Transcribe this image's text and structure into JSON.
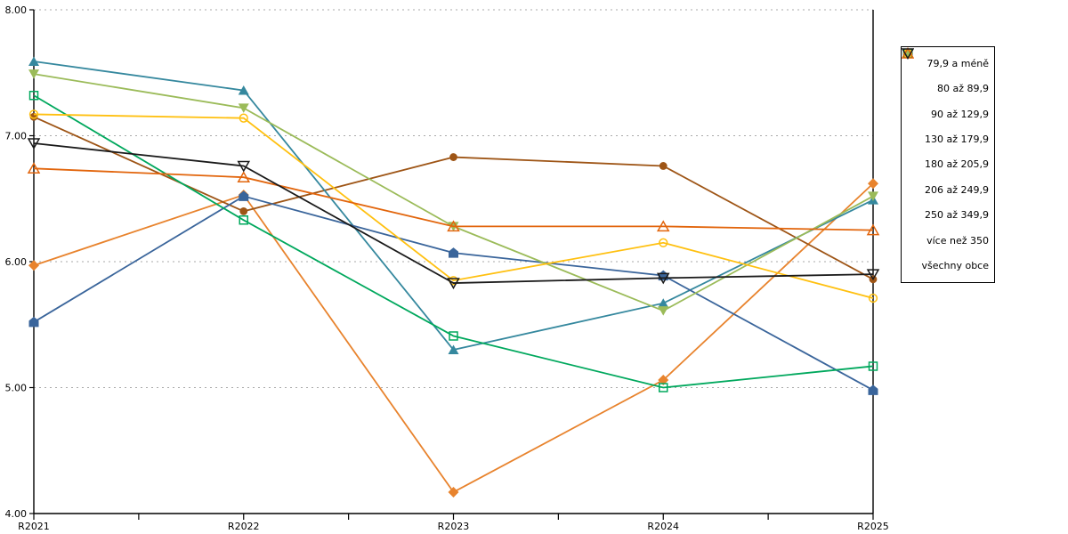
{
  "chart_data": {
    "type": "line",
    "title": "",
    "xlabel": "",
    "ylabel": "",
    "categories": [
      "R2021",
      "R2022",
      "R2023",
      "R2024",
      "R2025"
    ],
    "series": [
      {
        "name": "79,9 a méně",
        "marker": "diamond",
        "fill": "filled",
        "color": "#E8832D",
        "values": [
          5.97,
          6.53,
          4.17,
          5.06,
          6.62
        ]
      },
      {
        "name": "80 až 89,9",
        "marker": "circle",
        "fill": "filled",
        "color": "#9E5516",
        "values": [
          7.15,
          6.4,
          6.83,
          6.76,
          5.86
        ]
      },
      {
        "name": "90 až 129,9",
        "marker": "triangle-up",
        "fill": "filled",
        "color": "#35889E",
        "values": [
          7.59,
          7.36,
          5.3,
          5.67,
          6.49
        ]
      },
      {
        "name": "130 až 179,9",
        "marker": "pentagon",
        "fill": "filled",
        "color": "#3A659B",
        "values": [
          5.52,
          6.52,
          6.07,
          5.89,
          4.98
        ]
      },
      {
        "name": "180 až 205,9",
        "marker": "triangle-down",
        "fill": "filled",
        "color": "#9BBB59",
        "values": [
          7.49,
          7.22,
          6.28,
          5.61,
          6.52
        ]
      },
      {
        "name": "206 až 249,9",
        "marker": "square",
        "fill": "open",
        "color": "#00A85D",
        "values": [
          7.32,
          6.33,
          5.41,
          5.0,
          5.17
        ]
      },
      {
        "name": "250 až 349,9",
        "marker": "circle",
        "fill": "open",
        "color": "#FFC010",
        "values": [
          7.17,
          7.14,
          5.85,
          6.15,
          5.71
        ]
      },
      {
        "name": "více než 350",
        "marker": "triangle-up",
        "fill": "open",
        "color": "#E2650C",
        "values": [
          6.74,
          6.67,
          6.28,
          6.28,
          6.25
        ]
      },
      {
        "name": "všechny obce",
        "marker": "triangle-down",
        "fill": "open",
        "color": "#1A1A1A",
        "values": [
          6.94,
          6.76,
          5.83,
          5.87,
          5.9
        ]
      }
    ],
    "ylim": [
      4,
      8
    ],
    "ytick_step": 1,
    "ytick_labels": [
      "4.00",
      "5.00",
      "6.00",
      "7.00",
      "8.00"
    ],
    "grid": "horizontal-dotted",
    "legend_position": "right"
  },
  "colors": {
    "axis": "#000000",
    "gridline": "#AAAAAA",
    "background": "#FFFFFF"
  }
}
